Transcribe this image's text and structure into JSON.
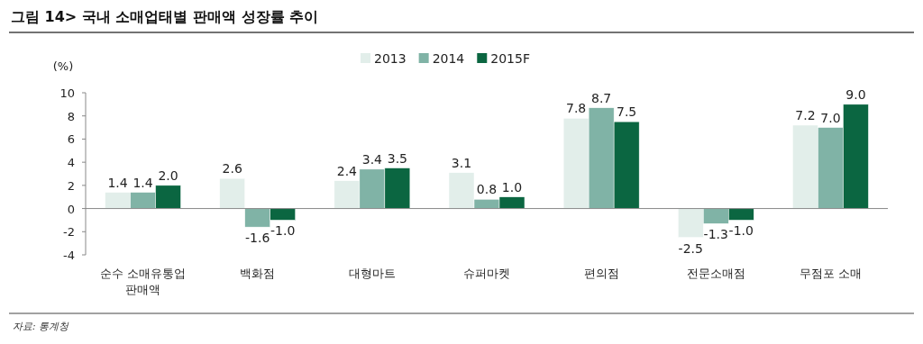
{
  "chart_data": {
    "type": "bar",
    "title": "그림 14> 국내 소매업태별 판매액 성장률 추이",
    "ylabel": "(%)",
    "categories": [
      "순수 소매유통업\n판매액",
      "백화점",
      "대형마트",
      "슈퍼마켓",
      "편의점",
      "전문소매점",
      "무점포 소매"
    ],
    "series": [
      {
        "name": "2013",
        "color": "#e2eeea",
        "values": [
          1.4,
          2.6,
          2.4,
          3.1,
          7.8,
          -2.5,
          7.2
        ],
        "value_labels": [
          "1.4",
          "2.6",
          "2.4",
          "3.1",
          "7.8",
          "-2.5",
          "7.2"
        ]
      },
      {
        "name": "2014",
        "color": "#80b3a6",
        "values": [
          1.4,
          -1.6,
          3.4,
          0.8,
          8.7,
          -1.3,
          7.0
        ],
        "value_labels": [
          "1.4",
          "-1.6",
          "3.4",
          "0.8",
          "8.7",
          "-1.3",
          "7.0"
        ]
      },
      {
        "name": "2015F",
        "color": "#0b6641",
        "values": [
          2.0,
          -1.0,
          3.5,
          1.0,
          7.5,
          -1.0,
          9.0
        ],
        "value_labels": [
          "2.0",
          "-1.0",
          "3.5",
          "1.0",
          "7.5",
          "-1.0",
          "9.0"
        ]
      }
    ],
    "ylim": [
      -4,
      10
    ],
    "yticks": [
      -4,
      -2,
      0,
      2,
      4,
      6,
      8,
      10
    ],
    "legend": "top",
    "annotations": [
      "자료: 통계청"
    ]
  }
}
